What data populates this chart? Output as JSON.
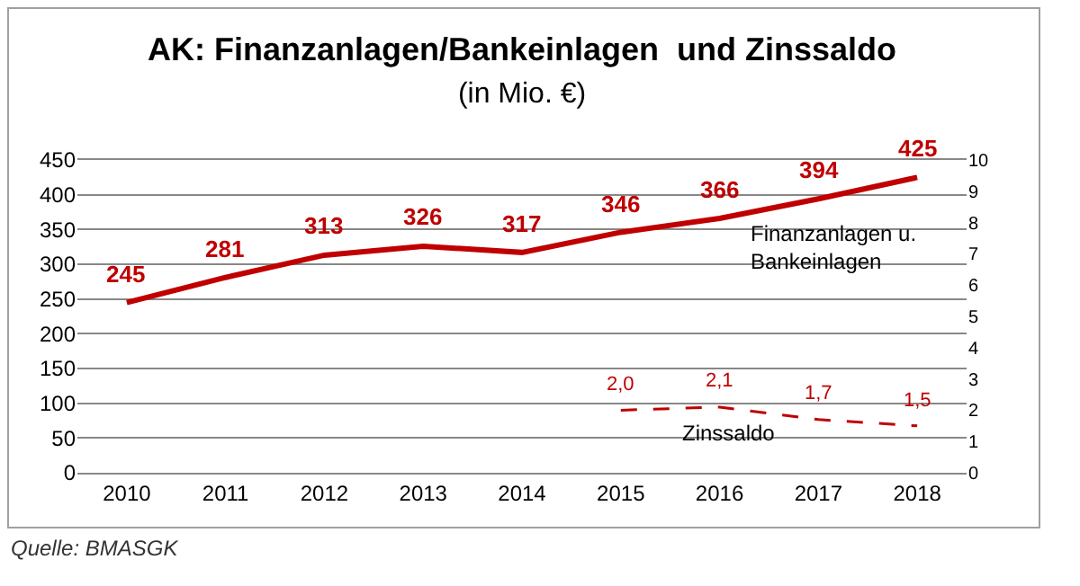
{
  "chart_data": {
    "type": "line",
    "title": "AK: Finanzanlagen/Bankeinlagen  und Zinssaldo",
    "subtitle": "(in Mio. €)",
    "categories": [
      "2010",
      "2011",
      "2012",
      "2013",
      "2014",
      "2015",
      "2016",
      "2017",
      "2018"
    ],
    "series": [
      {
        "name": "Finanzanlagen u.\nBankeinlagen",
        "color": "#c00000",
        "values": [
          245,
          281,
          313,
          326,
          317,
          346,
          366,
          394,
          425
        ],
        "value_labels": [
          "245",
          "281",
          "313",
          "326",
          "317",
          "346",
          "366",
          "394",
          "425"
        ]
      },
      {
        "name": "Zinssaldo",
        "color": "#c00000",
        "axis": "y2",
        "line_style": "dashed",
        "values": [
          null,
          null,
          null,
          null,
          null,
          2.0,
          2.1,
          1.7,
          1.5
        ],
        "value_labels": [
          null,
          null,
          null,
          null,
          null,
          "2,0",
          "2,1",
          "1,7",
          "1,5"
        ]
      }
    ],
    "ylim": [
      0,
      450
    ],
    "yticks": [
      0,
      50,
      100,
      150,
      200,
      250,
      300,
      350,
      400,
      450
    ],
    "y2lim": [
      0,
      10
    ],
    "y2ticks": [
      0,
      1,
      2,
      3,
      4,
      5,
      6,
      7,
      8,
      9,
      10
    ],
    "grid": "y",
    "legend": false,
    "marker": "none",
    "line_style": "solid",
    "annotations": [
      "Quelle: BMASGK"
    ]
  }
}
